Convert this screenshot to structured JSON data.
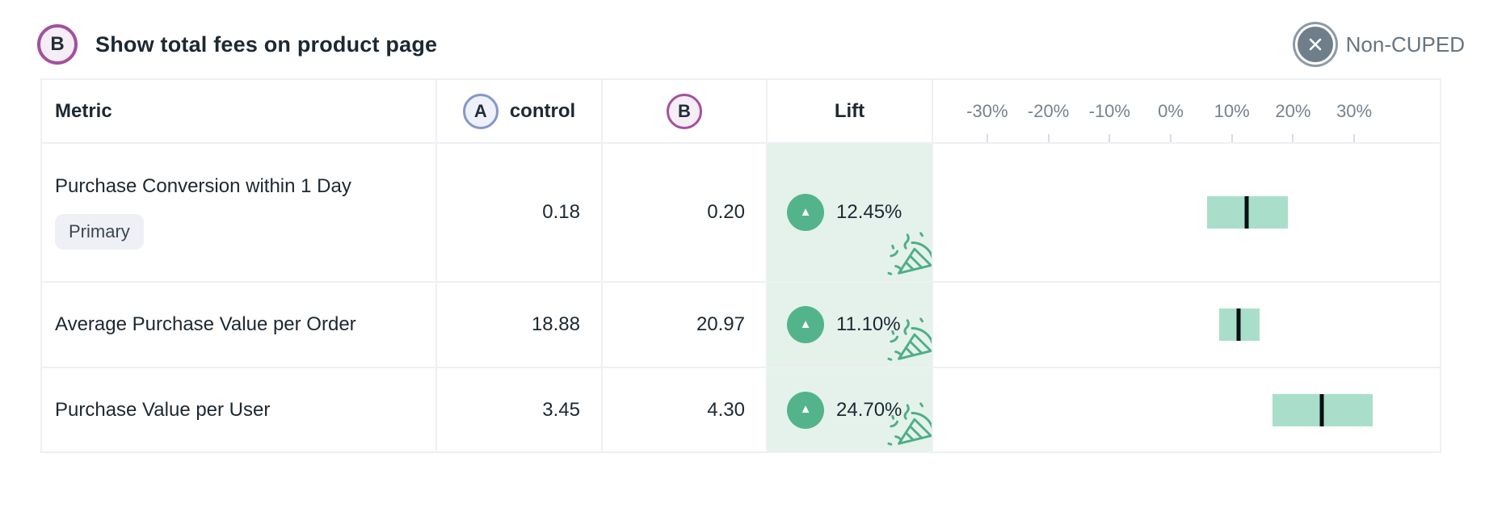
{
  "header": {
    "variant_badge": "B",
    "title": "Show total fees on product page",
    "cuped_label": "Non-CUPED"
  },
  "table": {
    "col_metric": "Metric",
    "control_badge": "A",
    "col_control": "control",
    "variant_badge": "B",
    "col_lift": "Lift",
    "axis": {
      "ticks": [
        {
          "label": "-30%",
          "value": -30
        },
        {
          "label": "-20%",
          "value": -20
        },
        {
          "label": "-10%",
          "value": -10
        },
        {
          "label": "0%",
          "value": 0
        },
        {
          "label": "10%",
          "value": 10
        },
        {
          "label": "20%",
          "value": 20
        },
        {
          "label": "30%",
          "value": 30
        }
      ]
    },
    "rows": [
      {
        "metric": "Purchase Conversion within 1 Day",
        "tag": "Primary",
        "control": "0.18",
        "variant": "0.20",
        "lift": "12.45%",
        "direction": "up",
        "significant": true,
        "ci_low": 6.0,
        "ci_high": 19.2,
        "ci_point": 12.45
      },
      {
        "metric": "Average Purchase Value per Order",
        "tag": "",
        "control": "18.88",
        "variant": "20.97",
        "lift": "11.10%",
        "direction": "up",
        "significant": true,
        "ci_low": 7.9,
        "ci_high": 14.5,
        "ci_point": 11.1
      },
      {
        "metric": "Purchase Value per User",
        "tag": "",
        "control": "3.45",
        "variant": "4.30",
        "lift": "24.70%",
        "direction": "up",
        "significant": true,
        "ci_low": 16.6,
        "ci_high": 33.0,
        "ci_point": 24.7
      }
    ]
  },
  "colors": {
    "accent_green": "#53b48b",
    "ci_bar_green": "#a9dfca",
    "lift_cell_bg": "#e4f2eb",
    "variant_purple": "#a3509f",
    "control_blue": "#8398c8",
    "text_dark": "#1c2832",
    "text_gray": "#76828e"
  }
}
